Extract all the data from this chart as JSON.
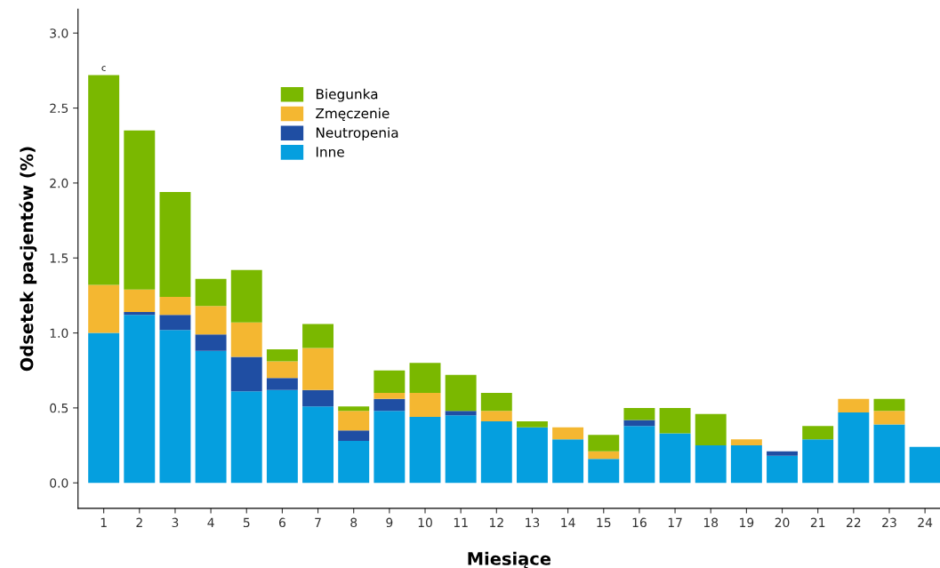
{
  "chart_data": {
    "type": "bar",
    "stacked": true,
    "xlabel": "Miesiące",
    "ylabel": "Odsetek pacjentów (%)",
    "categories": [
      "1",
      "2",
      "3",
      "4",
      "5",
      "6",
      "7",
      "8",
      "9",
      "10",
      "11",
      "12",
      "13",
      "14",
      "15",
      "16",
      "17",
      "18",
      "19",
      "20",
      "21",
      "22",
      "23",
      "24"
    ],
    "series": [
      {
        "name": "Inne",
        "color": "#059fdf",
        "values": [
          1.0,
          1.12,
          1.02,
          0.88,
          0.61,
          0.62,
          0.51,
          0.28,
          0.48,
          0.44,
          0.45,
          0.41,
          0.37,
          0.29,
          0.16,
          0.38,
          0.33,
          0.25,
          0.25,
          0.18,
          0.29,
          0.47,
          0.39,
          0.24
        ]
      },
      {
        "name": "Neutropenia",
        "color": "#1f4ea3",
        "values": [
          0,
          0.02,
          0.1,
          0.11,
          0.23,
          0.08,
          0.11,
          0.07,
          0.08,
          0,
          0.03,
          0,
          0,
          0,
          0,
          0.04,
          0,
          0,
          0,
          0.03,
          0,
          0,
          0,
          0
        ]
      },
      {
        "name": "Zmęczenie",
        "color": "#f4b731",
        "values": [
          0.32,
          0.15,
          0.12,
          0.19,
          0.23,
          0.11,
          0.28,
          0.13,
          0.04,
          0.16,
          0,
          0.07,
          0,
          0.08,
          0.05,
          0,
          0,
          0,
          0.04,
          0,
          0,
          0.09,
          0.09,
          0
        ]
      },
      {
        "name": "Biegunka",
        "color": "#7ab800",
        "values": [
          1.4,
          1.06,
          0.7,
          0.18,
          0.35,
          0.08,
          0.16,
          0.03,
          0.15,
          0.2,
          0.24,
          0.12,
          0.04,
          0,
          0.11,
          0.08,
          0.17,
          0.21,
          0,
          0,
          0.09,
          0,
          0.08,
          0
        ]
      }
    ],
    "ylim": [
      -0.17,
      3.16
    ],
    "yticks": [
      {
        "value": 0,
        "label": "0.0"
      },
      {
        "value": 0.5,
        "label": "0.5"
      },
      {
        "value": 1,
        "label": "1.0"
      },
      {
        "value": 1.5,
        "label": "1.5"
      },
      {
        "value": 2,
        "label": "2.0"
      },
      {
        "value": 2.5,
        "label": "2.5"
      },
      {
        "value": 3,
        "label": "3.0"
      }
    ],
    "annotations": [
      {
        "text": "c",
        "x": "1",
        "y": 2.72
      }
    ],
    "legend": "top left",
    "grid": false
  }
}
